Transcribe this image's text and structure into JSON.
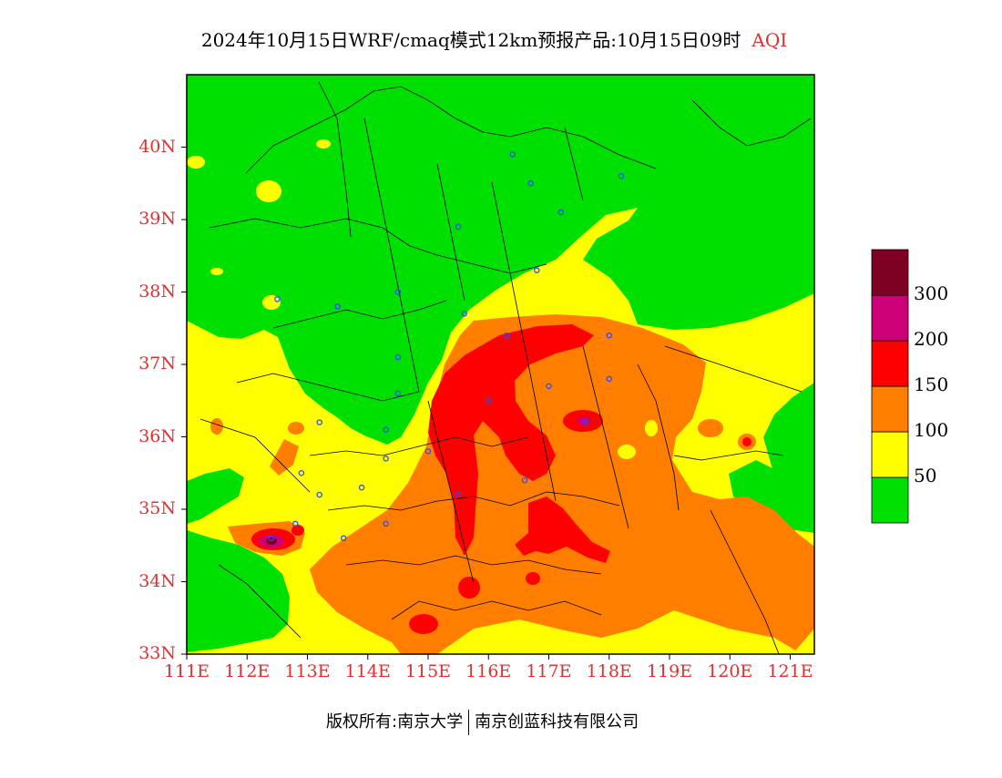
{
  "title": {
    "main": "2024年10月15日WRF/cmaq模式12km预报产品:10月15日09时",
    "variable": "AQI"
  },
  "map": {
    "lon_range": [
      111,
      121.4
    ],
    "lat_range": [
      33,
      41
    ],
    "lat_ticks": [
      {
        "value": 33,
        "label": "33N"
      },
      {
        "value": 34,
        "label": "34N"
      },
      {
        "value": 35,
        "label": "35N"
      },
      {
        "value": 36,
        "label": "36N"
      },
      {
        "value": 37,
        "label": "37N"
      },
      {
        "value": 38,
        "label": "38N"
      },
      {
        "value": 39,
        "label": "39N"
      },
      {
        "value": 40,
        "label": "40N"
      }
    ],
    "lon_ticks": [
      {
        "value": 111,
        "label": "111E"
      },
      {
        "value": 112,
        "label": "112E"
      },
      {
        "value": 113,
        "label": "113E"
      },
      {
        "value": 114,
        "label": "114E"
      },
      {
        "value": 115,
        "label": "115E"
      },
      {
        "value": 116,
        "label": "116E"
      },
      {
        "value": 117,
        "label": "117E"
      },
      {
        "value": 118,
        "label": "118E"
      },
      {
        "value": 119,
        "label": "119E"
      },
      {
        "value": 120,
        "label": "120E"
      },
      {
        "value": 121,
        "label": "121E"
      }
    ],
    "stations": [
      [
        116.4,
        39.9
      ],
      [
        117.2,
        39.1
      ],
      [
        116.7,
        39.5
      ],
      [
        118.2,
        39.6
      ],
      [
        115.5,
        38.9
      ],
      [
        116.8,
        38.3
      ],
      [
        112.5,
        37.9
      ],
      [
        113.5,
        37.8
      ],
      [
        114.5,
        38.0
      ],
      [
        115.6,
        37.7
      ],
      [
        116.3,
        37.4
      ],
      [
        114.5,
        37.1
      ],
      [
        114.5,
        36.6
      ],
      [
        113.2,
        36.2
      ],
      [
        114.3,
        36.1
      ],
      [
        116.0,
        36.5
      ],
      [
        117.0,
        36.7
      ],
      [
        118.0,
        37.4
      ],
      [
        118.0,
        36.8
      ],
      [
        117.6,
        36.2
      ],
      [
        115.0,
        35.8
      ],
      [
        114.3,
        35.7
      ],
      [
        112.9,
        35.5
      ],
      [
        113.9,
        35.3
      ],
      [
        113.2,
        35.2
      ],
      [
        115.5,
        35.2
      ],
      [
        116.6,
        35.4
      ],
      [
        114.3,
        34.8
      ],
      [
        112.4,
        34.6
      ],
      [
        112.8,
        34.8
      ],
      [
        113.6,
        34.6
      ]
    ]
  },
  "legend": {
    "levels": [
      {
        "color": "#00e000",
        "label": "50"
      },
      {
        "color": "#ffff00",
        "label": "100"
      },
      {
        "color": "#ff7e00",
        "label": "150"
      },
      {
        "color": "#ff0000",
        "label": "200"
      },
      {
        "color": "#cc0077",
        "label": "300"
      },
      {
        "color": "#7e0023",
        "label": ""
      }
    ]
  },
  "footer": {
    "left": "版权所有:南京大学",
    "right": "南京创蓝科技有限公司"
  }
}
